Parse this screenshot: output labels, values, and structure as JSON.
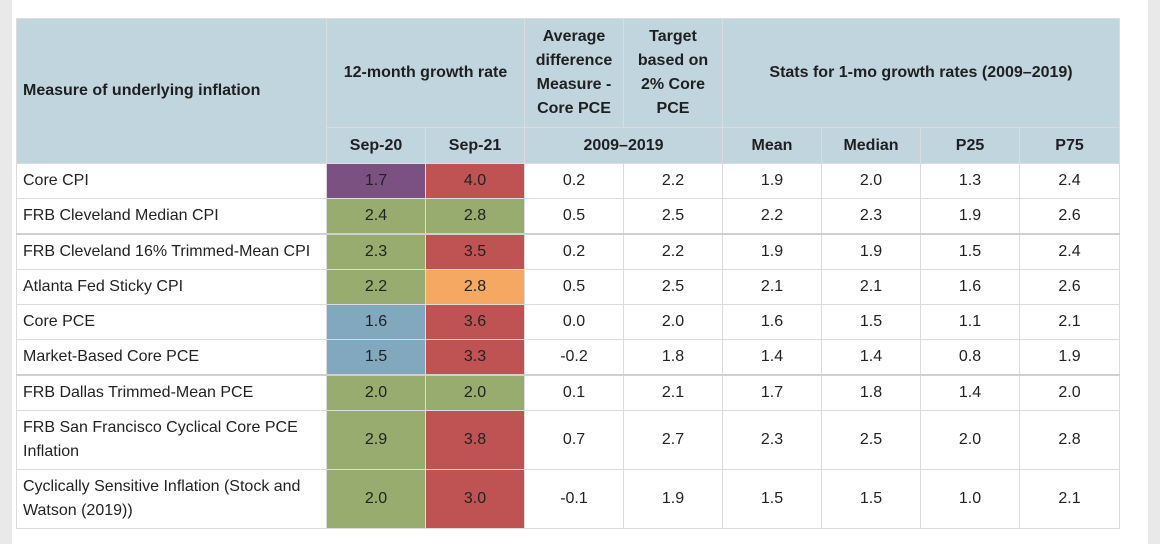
{
  "table": {
    "headers": {
      "measure": "Measure of underlying inflation",
      "growth": "12-month growth rate",
      "avg_diff": [
        "Average",
        "difference",
        "Measure -",
        "Core PCE"
      ],
      "target": [
        "Target",
        "based on",
        "2% Core",
        "PCE"
      ],
      "stats": "Stats for 1-mo growth rates (2009–2019)",
      "sep20": "Sep-20",
      "sep21": "Sep-21",
      "period": "2009–2019",
      "mean": "Mean",
      "median": "Median",
      "p25": "P25",
      "p75": "P75"
    },
    "rows": [
      {
        "label": "Core CPI",
        "sep20": "1.7",
        "sep21": "4.0",
        "avg": "0.2",
        "target": "2.2",
        "mean": "1.9",
        "median": "2.0",
        "p25": "1.3",
        "p75": "2.4",
        "c20": "#7b5182",
        "c21": "#bf5353"
      },
      {
        "label": "FRB Cleveland Median CPI",
        "sep20": "2.4",
        "sep21": "2.8",
        "avg": "0.5",
        "target": "2.5",
        "mean": "2.2",
        "median": "2.3",
        "p25": "1.9",
        "p75": "2.6",
        "c20": "#97ac6e",
        "c21": "#97ac6e"
      },
      {
        "label": "FRB Cleveland 16% Trimmed-Mean CPI",
        "sep20": "2.3",
        "sep21": "3.5",
        "avg": "0.2",
        "target": "2.2",
        "mean": "1.9",
        "median": "1.9",
        "p25": "1.5",
        "p75": "2.4",
        "c20": "#97ac6e",
        "c21": "#bf5353"
      },
      {
        "label": "Atlanta Fed Sticky CPI",
        "sep20": "2.2",
        "sep21": "2.8",
        "avg": "0.5",
        "target": "2.5",
        "mean": "2.1",
        "median": "2.1",
        "p25": "1.6",
        "p75": "2.6",
        "c20": "#97ac6e",
        "c21": "#f5a862"
      },
      {
        "label": "Core PCE",
        "sep20": "1.6",
        "sep21": "3.6",
        "avg": "0.0",
        "target": "2.0",
        "mean": "1.6",
        "median": "1.5",
        "p25": "1.1",
        "p75": "2.1",
        "c20": "#82a8be",
        "c21": "#bf5353"
      },
      {
        "label": "Market-Based Core PCE",
        "sep20": "1.5",
        "sep21": "3.3",
        "avg": "-0.2",
        "target": "1.8",
        "mean": "1.4",
        "median": "1.4",
        "p25": "0.8",
        "p75": "1.9",
        "c20": "#82a8be",
        "c21": "#bf5353"
      },
      {
        "label": "FRB Dallas Trimmed-Mean PCE",
        "sep20": "2.0",
        "sep21": "2.0",
        "avg": "0.1",
        "target": "2.1",
        "mean": "1.7",
        "median": "1.8",
        "p25": "1.4",
        "p75": "2.0",
        "c20": "#97ac6e",
        "c21": "#97ac6e"
      },
      {
        "label": "FRB San Francisco Cyclical Core PCE Inflation",
        "sep20": "2.9",
        "sep21": "3.8",
        "avg": "0.7",
        "target": "2.7",
        "mean": "2.3",
        "median": "2.5",
        "p25": "2.0",
        "p75": "2.8",
        "c20": "#97ac6e",
        "c21": "#bf5353"
      },
      {
        "label": "Cyclically Sensitive Inflation (Stock and Watson (2019))",
        "sep20": "2.0",
        "sep21": "3.0",
        "avg": "-0.1",
        "target": "1.9",
        "mean": "1.5",
        "median": "1.5",
        "p25": "1.0",
        "p75": "2.1",
        "c20": "#97ac6e",
        "c21": "#bf5353"
      }
    ]
  }
}
